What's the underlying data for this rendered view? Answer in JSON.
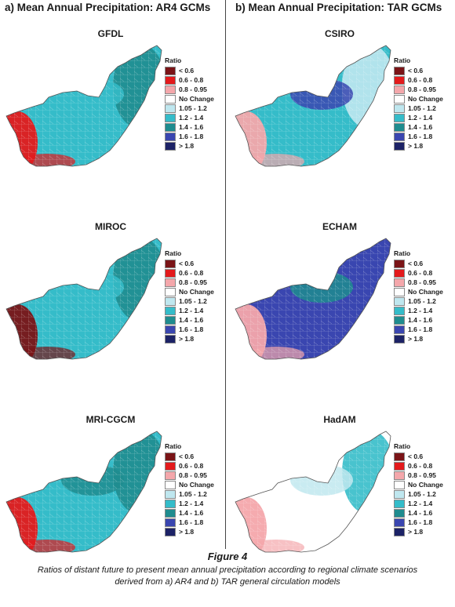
{
  "columns": [
    {
      "title": "a) Mean Annual Precipitation: AR4 GCMs"
    },
    {
      "title": "b) Mean Annual Precipitation: TAR GCMs"
    }
  ],
  "legend": {
    "title": "Ratio",
    "classes": [
      {
        "label": "< 0.6",
        "color": "#7a1417"
      },
      {
        "label": "0.6 - 0.8",
        "color": "#e31a1c"
      },
      {
        "label": "0.8 - 0.95",
        "color": "#f4a7ab"
      },
      {
        "label": "No Change",
        "color": "#ffffff"
      },
      {
        "label": "1.05 - 1.2",
        "color": "#bfe7ef"
      },
      {
        "label": "1.2 - 1.4",
        "color": "#35bcc9"
      },
      {
        "label": "1.4 - 1.6",
        "color": "#1f8c8f"
      },
      {
        "label": "1.6 - 1.8",
        "color": "#3a46b0"
      },
      {
        "label": "> 1.8",
        "color": "#1c2266"
      }
    ]
  },
  "panels": [
    {
      "model": "GFDL",
      "column": "a",
      "dominant": "1.2 - 1.4",
      "west": "0.6 - 0.8",
      "east": "1.4 - 1.6",
      "north": "1.2 - 1.4"
    },
    {
      "model": "CSIRO",
      "column": "b",
      "dominant": "1.2 - 1.4",
      "west": "0.8 - 0.95",
      "east": "1.05 - 1.2",
      "north": "1.6 - 1.8"
    },
    {
      "model": "MIROC",
      "column": "a",
      "dominant": "1.2 - 1.4",
      "west": "< 0.6",
      "east": "1.4 - 1.6",
      "north": "1.2 - 1.4"
    },
    {
      "model": "ECHAM",
      "column": "b",
      "dominant": "1.6 - 1.8",
      "west": "0.8 - 0.95",
      "east": "1.6 - 1.8",
      "north": "1.4 - 1.6"
    },
    {
      "model": "MRI-CGCM",
      "column": "a",
      "dominant": "1.2 - 1.4",
      "west": "0.6 - 0.8",
      "east": "1.4 - 1.6",
      "north": "1.4 - 1.6"
    },
    {
      "model": "HadAM",
      "column": "b",
      "dominant": "No Change",
      "west": "0.8 - 0.95",
      "east": "1.2 - 1.4",
      "north": "1.05 - 1.2"
    }
  ],
  "figure": {
    "label": "Figure 4",
    "caption_line1": "Ratios of distant future to present mean annual precipitation according to regional climate scenarios",
    "caption_line2": "derived from a) AR4 and b) TAR general circulation models"
  }
}
